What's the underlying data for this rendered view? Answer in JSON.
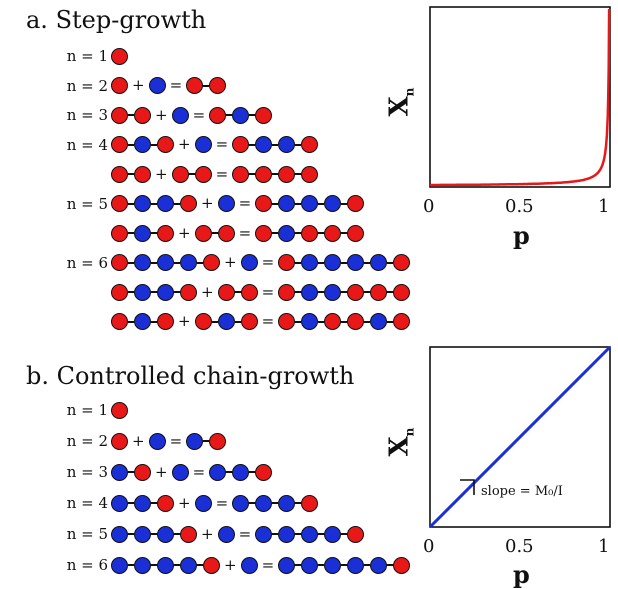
{
  "panel_a": {
    "title": "a. Step-growth",
    "groups": [
      {
        "label": "n = 1",
        "rows": [
          [
            "R"
          ]
        ]
      },
      {
        "label": "n = 2",
        "rows": [
          [
            "R",
            "+",
            "B",
            "=",
            "R-R"
          ]
        ]
      },
      {
        "label": "n = 3",
        "rows": [
          [
            "R-R",
            "+",
            "B",
            "=",
            "R-B-R"
          ]
        ]
      },
      {
        "label": "n = 4",
        "rows": [
          [
            "R-B-R",
            "+",
            "B",
            "=",
            "R-B-B-R"
          ],
          [
            "R-R",
            "+",
            "R-R",
            "=",
            "R-R-R-R"
          ]
        ]
      },
      {
        "label": "n = 5",
        "rows": [
          [
            "R-B-B-R",
            "+",
            "B",
            "=",
            "R-B-B-B-R"
          ],
          [
            "R-B-R",
            "+",
            "R-R",
            "=",
            "R-B-R-R-R"
          ]
        ]
      },
      {
        "label": "n = 6",
        "rows": [
          [
            "R-B-B-B-R",
            "+",
            "B",
            "=",
            "R-B-B-B-B-R"
          ],
          [
            "R-B-B-R",
            "+",
            "R-R",
            "=",
            "R-B-B-R-R-R"
          ],
          [
            "R-B-R",
            "+",
            "R-B-R",
            "=",
            "R-B-R-R-B-R"
          ]
        ]
      }
    ]
  },
  "panel_b": {
    "title": "b. Controlled chain-growth",
    "groups": [
      {
        "label": "n = 1",
        "rows": [
          [
            "R"
          ]
        ]
      },
      {
        "label": "n = 2",
        "rows": [
          [
            "R",
            "+",
            "B",
            "=",
            "B-R"
          ]
        ]
      },
      {
        "label": "n = 3",
        "rows": [
          [
            "B-R",
            "+",
            "B",
            "=",
            "B-B-R"
          ]
        ]
      },
      {
        "label": "n = 4",
        "rows": [
          [
            "B-B-R",
            "+",
            "B",
            "=",
            "B-B-B-R"
          ]
        ]
      },
      {
        "label": "n = 5",
        "rows": [
          [
            "B-B-B-R",
            "+",
            "B",
            "=",
            "B-B-B-B-R"
          ]
        ]
      },
      {
        "label": "n = 6",
        "rows": [
          [
            "B-B-B-B-R",
            "+",
            "B",
            "=",
            "B-B-B-B-B-R"
          ]
        ]
      }
    ]
  },
  "chart_data": [
    {
      "type": "line",
      "title": "",
      "xlabel": "p",
      "ylabel": "X_n",
      "xlim": [
        0,
        1
      ],
      "xticks": [
        "0",
        "0.5",
        "1"
      ],
      "series": [
        {
          "color": "#e81818",
          "formula": "Xn = 1/(1-p)",
          "x": [
            0,
            0.5,
            0.8,
            0.9,
            0.95,
            0.98,
            0.99
          ],
          "y": [
            1,
            2,
            5,
            10,
            20,
            50,
            100
          ]
        }
      ]
    },
    {
      "type": "line",
      "title": "",
      "xlabel": "p",
      "ylabel": "X_n",
      "xlim": [
        0,
        1
      ],
      "xticks": [
        "0",
        "0.5",
        "1"
      ],
      "annotation": "slope = M₀/I",
      "series": [
        {
          "color": "#1a2fd6",
          "x": [
            0,
            1
          ],
          "y": [
            0,
            1
          ]
        }
      ]
    }
  ],
  "symbols": {
    "plus": "+",
    "equals": "="
  },
  "colors": {
    "red": "#e81818",
    "blue": "#1a2fd6"
  }
}
